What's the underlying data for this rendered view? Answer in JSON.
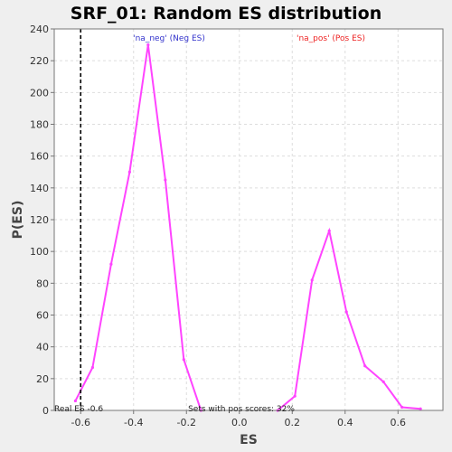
{
  "chart_data": {
    "type": "line",
    "title": "SRF_01: Random ES distribution",
    "xlabel": "ES",
    "ylabel": "P(ES)",
    "xlim": [
      -0.7,
      0.77
    ],
    "ylim": [
      0,
      240
    ],
    "grid": true,
    "x_ticks": [
      "-0.6",
      "-0.4",
      "-0.2",
      "0.0",
      "0.2",
      "0.4",
      "0.6"
    ],
    "x_tick_values": [
      -0.6,
      -0.4,
      -0.2,
      0.0,
      0.2,
      0.4,
      0.6
    ],
    "y_ticks": [
      "0",
      "20",
      "40",
      "60",
      "80",
      "100",
      "120",
      "140",
      "160",
      "180",
      "200",
      "220",
      "240"
    ],
    "y_tick_values": [
      0,
      20,
      40,
      60,
      80,
      100,
      120,
      140,
      160,
      180,
      200,
      220,
      240
    ],
    "series_color": "#ff44ff",
    "series": [
      {
        "x": [
          -0.62,
          -0.555,
          -0.485,
          -0.415,
          -0.345,
          -0.28,
          -0.21,
          -0.145
        ],
        "y": [
          6,
          27,
          92,
          150,
          230,
          145,
          32,
          0
        ]
      },
      {
        "x": [
          0.145,
          0.21,
          0.275,
          0.34,
          0.405,
          0.475,
          0.545,
          0.615,
          0.685
        ],
        "y": [
          0,
          9,
          82,
          113,
          62,
          28,
          18,
          2,
          1
        ]
      }
    ],
    "real_es": -0.6,
    "annotations": {
      "neg_label": "'na_neg' (Neg ES)",
      "neg_color": "#3333cc",
      "pos_label": "'na_pos' (Pos ES)",
      "pos_color": "#ee2222",
      "real_es_label": "Real ES -0.6",
      "pos_scores_label": "Sets with pos scores: 32%"
    }
  }
}
